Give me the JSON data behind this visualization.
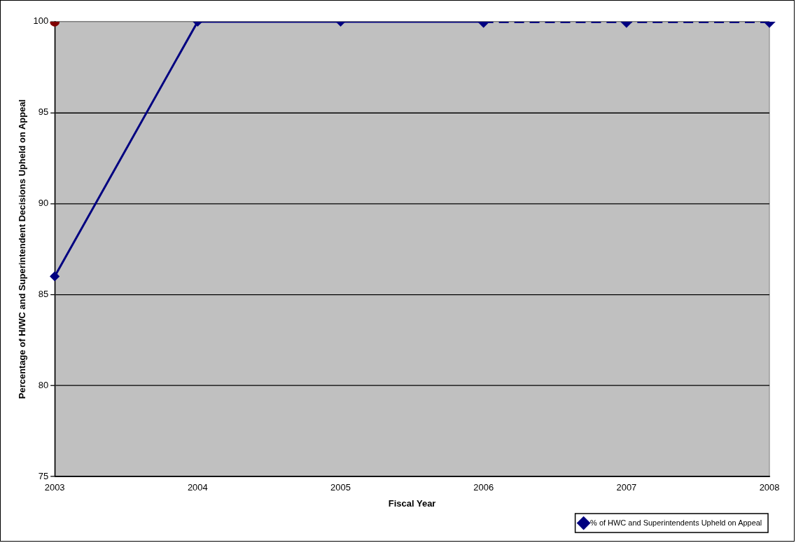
{
  "chart_data": {
    "type": "line",
    "xlabel": "Fiscal Year",
    "ylabel": "Percentage of H/WC and Superintendent Decisions Upheld on Appeal",
    "categories": [
      "2003",
      "2004",
      "2005",
      "2006",
      "2007",
      "2008"
    ],
    "series": [
      {
        "name": "% of HWC and Superintendents Upheld on Appeal",
        "color": "#000080",
        "values": [
          86,
          100,
          100,
          100,
          null,
          null
        ],
        "line_style": "solid",
        "marker": "diamond"
      },
      {
        "color": "#000080",
        "values": [
          null,
          null,
          null,
          100,
          100,
          100
        ],
        "line_style": "dashed",
        "marker": "diamond"
      },
      {
        "type": "scatter",
        "color": "#800000",
        "values": [
          100,
          null,
          null,
          null,
          null,
          null
        ],
        "marker": "circle"
      }
    ],
    "ylim": [
      75,
      100
    ],
    "yticks": [
      75,
      80,
      85,
      90,
      95,
      100
    ],
    "grid": "y",
    "legend": "bottom right"
  }
}
